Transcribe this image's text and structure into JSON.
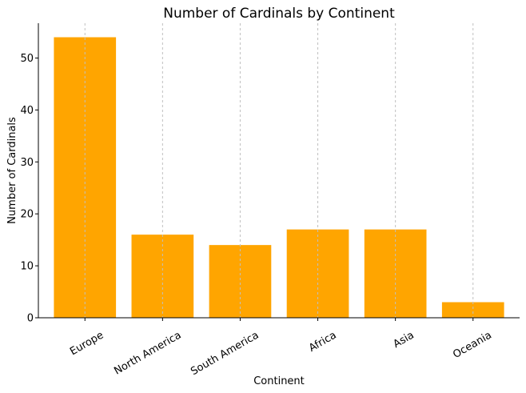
{
  "chart_data": {
    "type": "bar",
    "title": "Number of Cardinals by Continent",
    "xlabel": "Continent",
    "ylabel": "Number of Cardinals",
    "categories": [
      "Europe",
      "North America",
      "South America",
      "Africa",
      "Asia",
      "Oceania"
    ],
    "values": [
      54,
      16,
      14,
      17,
      17,
      3
    ],
    "ylim": [
      0,
      56.7
    ],
    "yticks": [
      0,
      10,
      20,
      30,
      40,
      50
    ],
    "bar_color": "#ffa500",
    "grid": "vertical dashed",
    "tick_rotation": 30
  }
}
